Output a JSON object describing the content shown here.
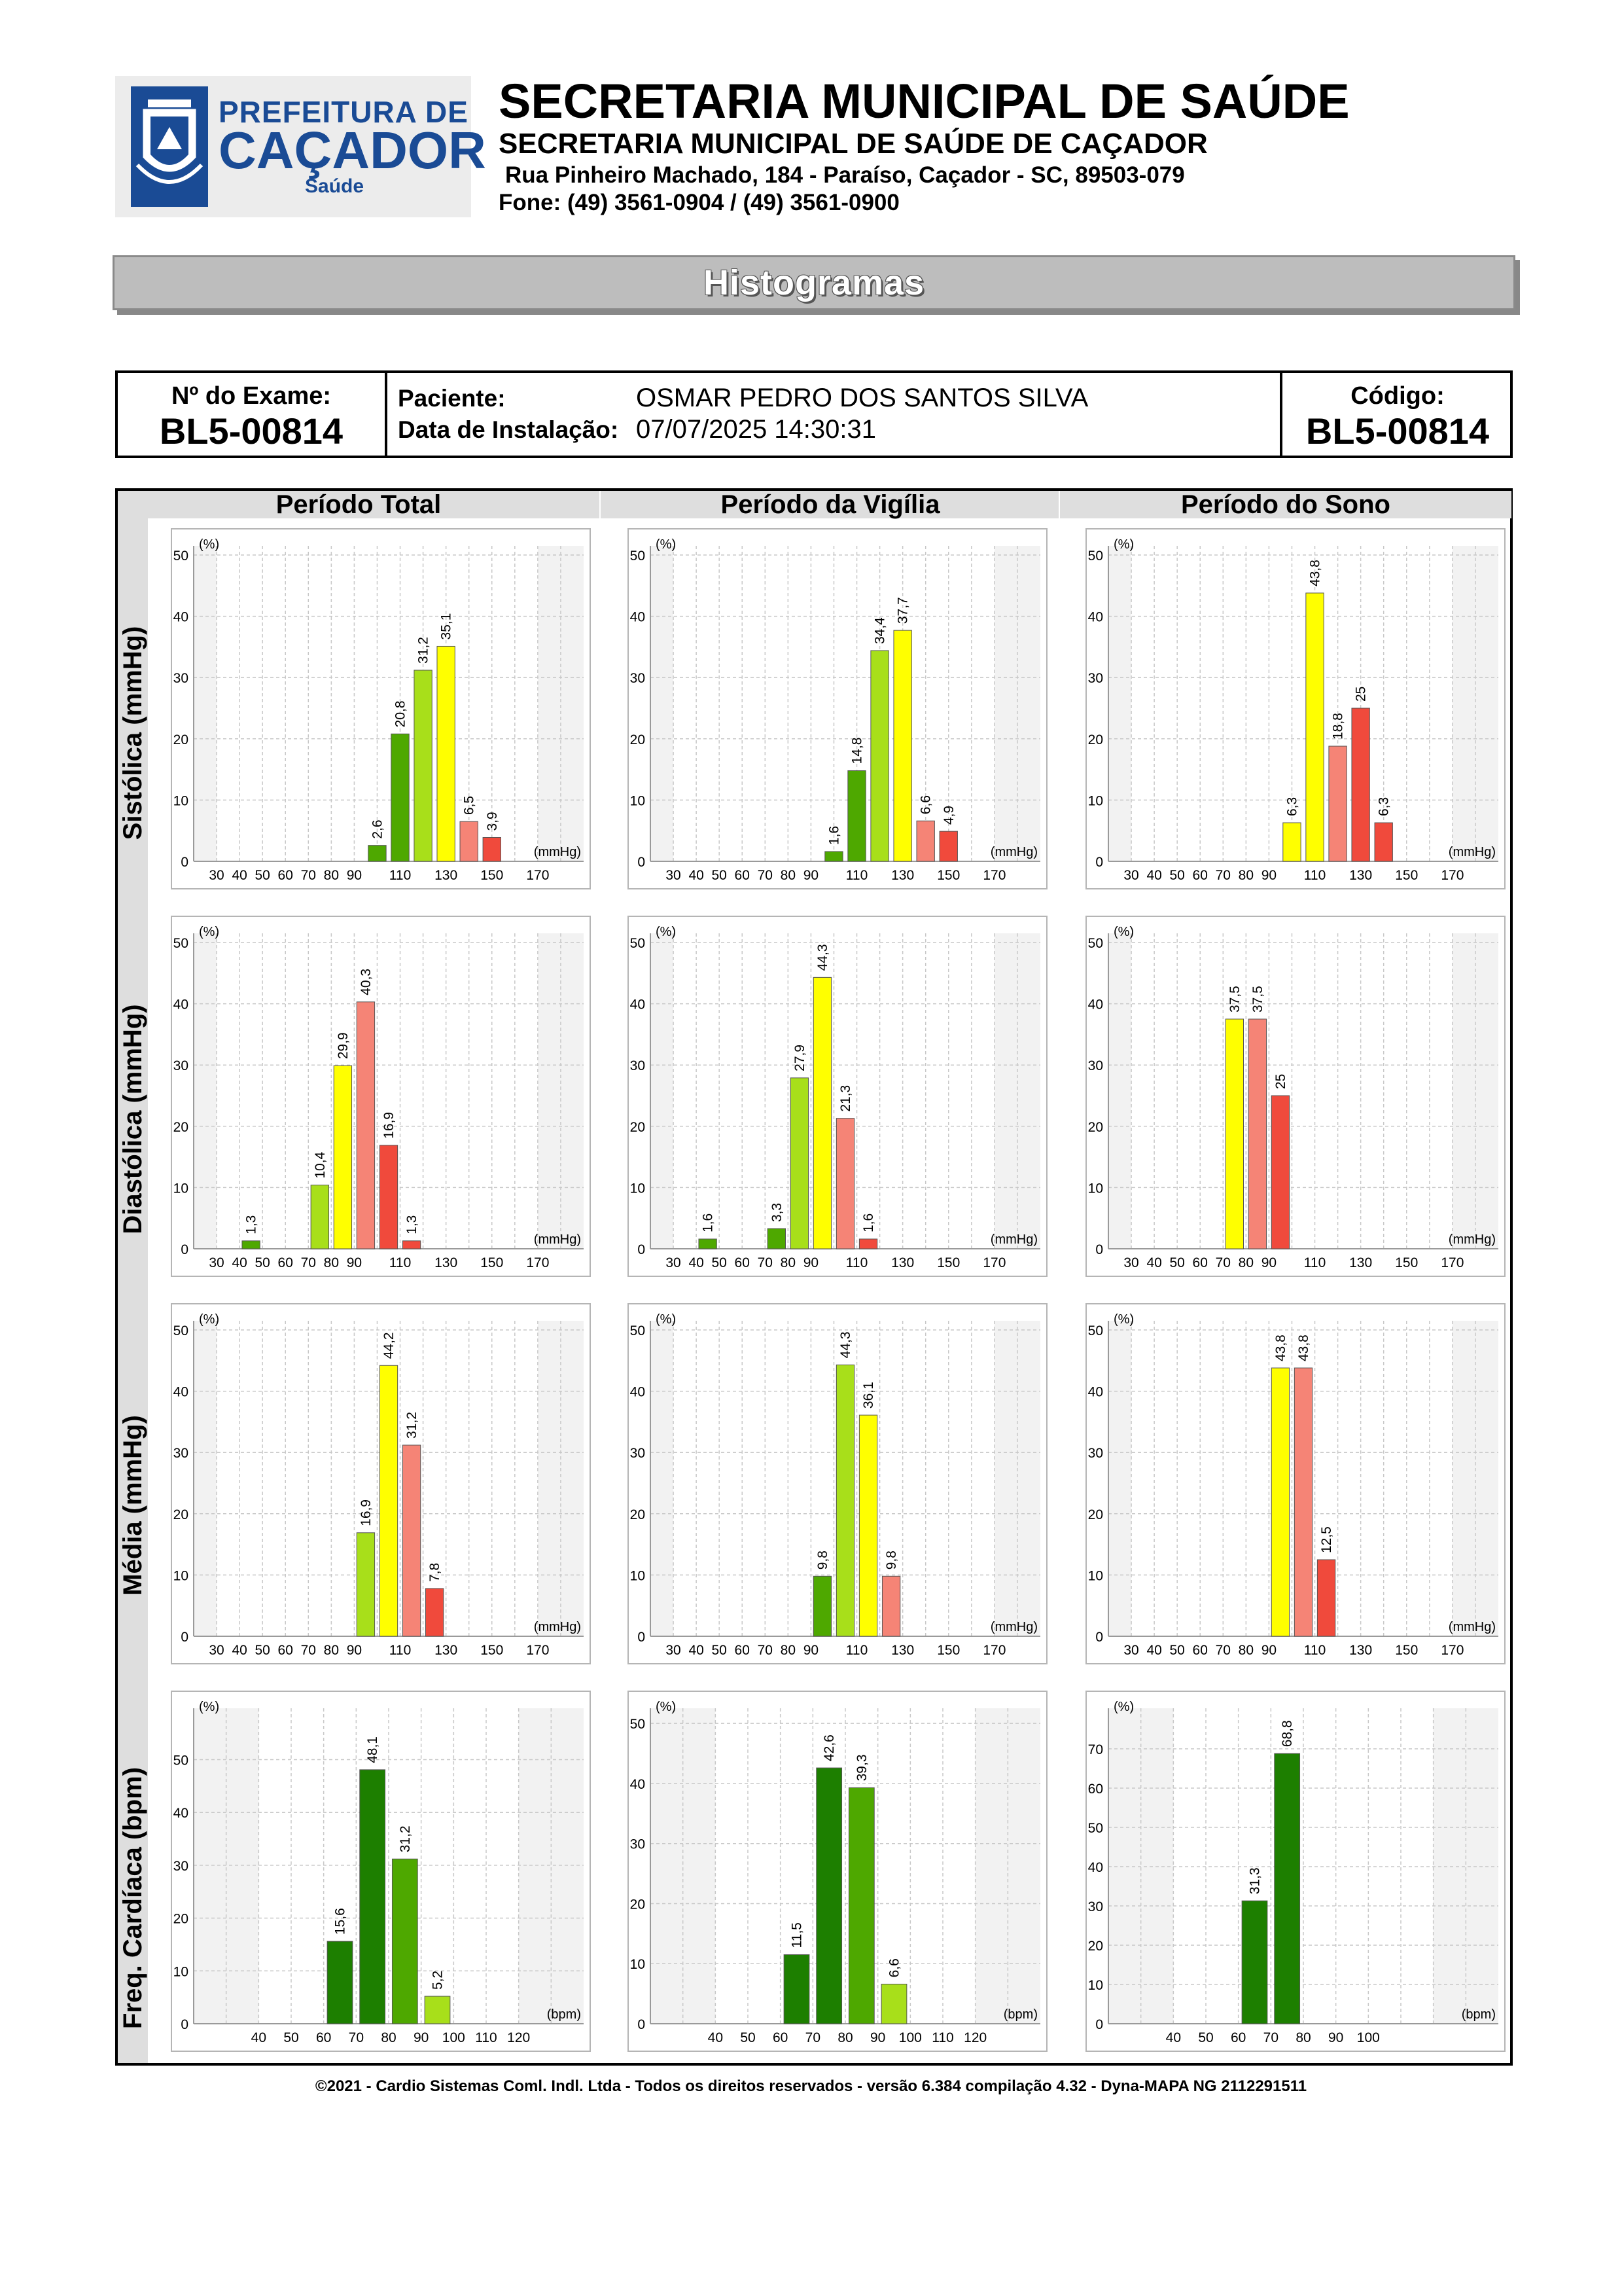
{
  "header": {
    "logo": {
      "line1": "PREFEITURA DE",
      "line2": "CAÇADOR",
      "line3": "Saúde"
    },
    "title": "SECRETARIA MUNICIPAL DE SAÚDE",
    "subtitle": "SECRETARIA MUNICIPAL DE SAÚDE DE CAÇADOR",
    "address": "Rua Pinheiro Machado, 184 - Paraíso, Caçador - SC, 89503-079",
    "phone": "Fone: (49) 3561-0904  / (49) 3561-0900"
  },
  "banner": {
    "title": "Histogramas"
  },
  "info": {
    "exam_label": "Nº do Exame:",
    "exam_value": "BL5-00814",
    "patient_label": "Paciente:",
    "patient_value": "OSMAR PEDRO DOS SANTOS SILVA",
    "install_label": "Data de Instalação:",
    "install_value": "07/07/2025 14:30:31",
    "code_label": "Código:",
    "code_value": "BL5-00814"
  },
  "columns": [
    "Período Total",
    "Período da Vigília",
    "Período do Sono"
  ],
  "rows": [
    "Sistólica (mmHg)",
    "Diastólica (mmHg)",
    "Média (mmHg)",
    "Freq. Cardíaca (bpm)"
  ],
  "colors": {
    "dark_green": "#1d7f00",
    "mid_green": "#4ea800",
    "light_green": "#a8df1a",
    "yellow": "#ffff00",
    "salmon": "#f58476",
    "red": "#f04a3c"
  },
  "chart_data": [
    {
      "type": "bar",
      "row": "Sistólica (mmHg)",
      "column": "Período Total",
      "y_unit": "(%)",
      "x_unit": "(mmHg)",
      "ylim": [
        0,
        50
      ],
      "yticks": [
        0,
        10,
        20,
        30,
        40,
        50
      ],
      "xtick_labels": [
        "30",
        "40",
        "50",
        "60",
        "70",
        "80",
        "90",
        "110",
        "130",
        "150",
        "170"
      ],
      "bars": [
        {
          "x": 100,
          "value": 2.6,
          "label": "2,6",
          "color": "#4ea800"
        },
        {
          "x": 110,
          "value": 20.8,
          "label": "20,8",
          "color": "#4ea800"
        },
        {
          "x": 120,
          "value": 31.2,
          "label": "31,2",
          "color": "#a8df1a"
        },
        {
          "x": 130,
          "value": 35.1,
          "label": "35,1",
          "color": "#ffff00"
        },
        {
          "x": 140,
          "value": 6.5,
          "label": "6,5",
          "color": "#f58476"
        },
        {
          "x": 150,
          "value": 3.9,
          "label": "3,9",
          "color": "#f04a3c"
        }
      ]
    },
    {
      "type": "bar",
      "row": "Sistólica (mmHg)",
      "column": "Período da Vigília",
      "y_unit": "(%)",
      "x_unit": "(mmHg)",
      "ylim": [
        0,
        50
      ],
      "yticks": [
        0,
        10,
        20,
        30,
        40,
        50
      ],
      "xtick_labels": [
        "30",
        "40",
        "50",
        "60",
        "70",
        "80",
        "90",
        "110",
        "130",
        "150",
        "170"
      ],
      "bars": [
        {
          "x": 100,
          "value": 1.6,
          "label": "1,6",
          "color": "#4ea800"
        },
        {
          "x": 110,
          "value": 14.8,
          "label": "14,8",
          "color": "#4ea800"
        },
        {
          "x": 120,
          "value": 34.4,
          "label": "34,4",
          "color": "#a8df1a"
        },
        {
          "x": 130,
          "value": 37.7,
          "label": "37,7",
          "color": "#ffff00"
        },
        {
          "x": 140,
          "value": 6.6,
          "label": "6,6",
          "color": "#f58476"
        },
        {
          "x": 150,
          "value": 4.9,
          "label": "4,9",
          "color": "#f04a3c"
        }
      ]
    },
    {
      "type": "bar",
      "row": "Sistólica (mmHg)",
      "column": "Período do Sono",
      "y_unit": "(%)",
      "x_unit": "(mmHg)",
      "ylim": [
        0,
        50
      ],
      "yticks": [
        0,
        10,
        20,
        30,
        40,
        50
      ],
      "xtick_labels": [
        "30",
        "40",
        "50",
        "60",
        "70",
        "80",
        "90",
        "110",
        "130",
        "150",
        "170"
      ],
      "bars": [
        {
          "x": 100,
          "value": 6.3,
          "label": "6,3",
          "color": "#ffff00"
        },
        {
          "x": 110,
          "value": 43.8,
          "label": "43,8",
          "color": "#ffff00"
        },
        {
          "x": 120,
          "value": 18.8,
          "label": "18,8",
          "color": "#f58476"
        },
        {
          "x": 130,
          "value": 25,
          "label": "25",
          "color": "#f04a3c"
        },
        {
          "x": 140,
          "value": 6.3,
          "label": "6,3",
          "color": "#f04a3c"
        }
      ]
    },
    {
      "type": "bar",
      "row": "Diastólica (mmHg)",
      "column": "Período Total",
      "y_unit": "(%)",
      "x_unit": "(mmHg)",
      "ylim": [
        0,
        50
      ],
      "yticks": [
        0,
        10,
        20,
        30,
        40,
        50
      ],
      "xtick_labels": [
        "30",
        "40",
        "50",
        "60",
        "70",
        "80",
        "90",
        "110",
        "130",
        "150",
        "170"
      ],
      "bars": [
        {
          "x": 45,
          "value": 1.3,
          "label": "1,3",
          "color": "#4ea800"
        },
        {
          "x": 75,
          "value": 10.4,
          "label": "10,4",
          "color": "#a8df1a"
        },
        {
          "x": 85,
          "value": 29.9,
          "label": "29,9",
          "color": "#ffff00"
        },
        {
          "x": 95,
          "value": 40.3,
          "label": "40,3",
          "color": "#f58476"
        },
        {
          "x": 105,
          "value": 16.9,
          "label": "16,9",
          "color": "#f04a3c"
        },
        {
          "x": 115,
          "value": 1.3,
          "label": "1,3",
          "color": "#f04a3c"
        }
      ]
    },
    {
      "type": "bar",
      "row": "Diastólica (mmHg)",
      "column": "Período da Vigília",
      "y_unit": "(%)",
      "x_unit": "(mmHg)",
      "ylim": [
        0,
        50
      ],
      "yticks": [
        0,
        10,
        20,
        30,
        40,
        50
      ],
      "xtick_labels": [
        "30",
        "40",
        "50",
        "60",
        "70",
        "80",
        "90",
        "110",
        "130",
        "150",
        "170"
      ],
      "bars": [
        {
          "x": 45,
          "value": 1.6,
          "label": "1,6",
          "color": "#4ea800"
        },
        {
          "x": 75,
          "value": 3.3,
          "label": "3,3",
          "color": "#4ea800"
        },
        {
          "x": 85,
          "value": 27.9,
          "label": "27,9",
          "color": "#a8df1a"
        },
        {
          "x": 95,
          "value": 44.3,
          "label": "44,3",
          "color": "#ffff00"
        },
        {
          "x": 105,
          "value": 21.3,
          "label": "21,3",
          "color": "#f58476"
        },
        {
          "x": 115,
          "value": 1.6,
          "label": "1,6",
          "color": "#f04a3c"
        }
      ]
    },
    {
      "type": "bar",
      "row": "Diastólica (mmHg)",
      "column": "Período do Sono",
      "y_unit": "(%)",
      "x_unit": "(mmHg)",
      "ylim": [
        0,
        50
      ],
      "yticks": [
        0,
        10,
        20,
        30,
        40,
        50
      ],
      "xtick_labels": [
        "30",
        "40",
        "50",
        "60",
        "70",
        "80",
        "90",
        "110",
        "130",
        "150",
        "170"
      ],
      "bars": [
        {
          "x": 75,
          "value": 37.5,
          "label": "37,5",
          "color": "#ffff00"
        },
        {
          "x": 85,
          "value": 37.5,
          "label": "37,5",
          "color": "#f58476"
        },
        {
          "x": 95,
          "value": 25,
          "label": "25",
          "color": "#f04a3c"
        }
      ]
    },
    {
      "type": "bar",
      "row": "Média (mmHg)",
      "column": "Período Total",
      "y_unit": "(%)",
      "x_unit": "(mmHg)",
      "ylim": [
        0,
        50
      ],
      "yticks": [
        0,
        10,
        20,
        30,
        40,
        50
      ],
      "xtick_labels": [
        "30",
        "40",
        "50",
        "60",
        "70",
        "80",
        "90",
        "110",
        "130",
        "150",
        "170"
      ],
      "bars": [
        {
          "x": 95,
          "value": 16.9,
          "label": "16,9",
          "color": "#a8df1a"
        },
        {
          "x": 105,
          "value": 44.2,
          "label": "44,2",
          "color": "#ffff00"
        },
        {
          "x": 115,
          "value": 31.2,
          "label": "31,2",
          "color": "#f58476"
        },
        {
          "x": 125,
          "value": 7.8,
          "label": "7,8",
          "color": "#f04a3c"
        }
      ]
    },
    {
      "type": "bar",
      "row": "Média (mmHg)",
      "column": "Período da Vigília",
      "y_unit": "(%)",
      "x_unit": "(mmHg)",
      "ylim": [
        0,
        50
      ],
      "yticks": [
        0,
        10,
        20,
        30,
        40,
        50
      ],
      "xtick_labels": [
        "30",
        "40",
        "50",
        "60",
        "70",
        "80",
        "90",
        "110",
        "130",
        "150",
        "170"
      ],
      "bars": [
        {
          "x": 95,
          "value": 9.8,
          "label": "9,8",
          "color": "#4ea800"
        },
        {
          "x": 105,
          "value": 44.3,
          "label": "44,3",
          "color": "#a8df1a"
        },
        {
          "x": 115,
          "value": 36.1,
          "label": "36,1",
          "color": "#ffff00"
        },
        {
          "x": 125,
          "value": 9.8,
          "label": "9,8",
          "color": "#f58476"
        }
      ]
    },
    {
      "type": "bar",
      "row": "Média (mmHg)",
      "column": "Período do Sono",
      "y_unit": "(%)",
      "x_unit": "(mmHg)",
      "ylim": [
        0,
        50
      ],
      "yticks": [
        0,
        10,
        20,
        30,
        40,
        50
      ],
      "xtick_labels": [
        "30",
        "40",
        "50",
        "60",
        "70",
        "80",
        "90",
        "110",
        "130",
        "150",
        "170"
      ],
      "bars": [
        {
          "x": 95,
          "value": 43.8,
          "label": "43,8",
          "color": "#ffff00"
        },
        {
          "x": 105,
          "value": 43.8,
          "label": "43,8",
          "color": "#f58476"
        },
        {
          "x": 115,
          "value": 12.5,
          "label": "12,5",
          "color": "#f04a3c"
        }
      ]
    },
    {
      "type": "bar",
      "row": "Freq. Cardíaca (bpm)",
      "column": "Período Total",
      "y_unit": "(%)",
      "x_unit": "(bpm)",
      "ylim": [
        0,
        58
      ],
      "yticks": [
        0,
        10,
        20,
        30,
        40,
        50
      ],
      "xtick_labels": [
        "40",
        "50",
        "60",
        "70",
        "80",
        "90",
        "100",
        "110",
        "120"
      ],
      "bars": [
        {
          "x": 65,
          "value": 15.6,
          "label": "15,6",
          "color": "#1d7f00"
        },
        {
          "x": 75,
          "value": 48.1,
          "label": "48,1",
          "color": "#1d7f00"
        },
        {
          "x": 85,
          "value": 31.2,
          "label": "31,2",
          "color": "#4ea800"
        },
        {
          "x": 95,
          "value": 5.2,
          "label": "5,2",
          "color": "#a8df1a"
        }
      ]
    },
    {
      "type": "bar",
      "row": "Freq. Cardíaca (bpm)",
      "column": "Período da Vigília",
      "y_unit": "(%)",
      "x_unit": "(bpm)",
      "ylim": [
        0,
        51
      ],
      "yticks": [
        0,
        10,
        20,
        30,
        40,
        50
      ],
      "xtick_labels": [
        "40",
        "50",
        "60",
        "70",
        "80",
        "90",
        "100",
        "110",
        "120"
      ],
      "bars": [
        {
          "x": 65,
          "value": 11.5,
          "label": "11,5",
          "color": "#1d7f00"
        },
        {
          "x": 75,
          "value": 42.6,
          "label": "42,6",
          "color": "#1d7f00"
        },
        {
          "x": 85,
          "value": 39.3,
          "label": "39,3",
          "color": "#4ea800"
        },
        {
          "x": 95,
          "value": 6.6,
          "label": "6,6",
          "color": "#a8df1a"
        }
      ]
    },
    {
      "type": "bar",
      "row": "Freq. Cardíaca (bpm)",
      "column": "Período do Sono",
      "y_unit": "(%)",
      "x_unit": "(bpm)",
      "ylim": [
        0,
        78
      ],
      "yticks": [
        0,
        10,
        20,
        30,
        40,
        50,
        60,
        70
      ],
      "xtick_labels": [
        "40",
        "50",
        "60",
        "70",
        "80",
        "90",
        "100"
      ],
      "bars": [
        {
          "x": 65,
          "value": 31.3,
          "label": "31,3",
          "color": "#1d7f00"
        },
        {
          "x": 75,
          "value": 68.8,
          "label": "68,8",
          "color": "#1d7f00"
        }
      ]
    }
  ],
  "footer": "©2021 - Cardio Sistemas Coml. Indl. Ltda - Todos os direitos reservados - versão 6.384 compilação 4.32 - Dyna-MAPA NG 2112291511"
}
